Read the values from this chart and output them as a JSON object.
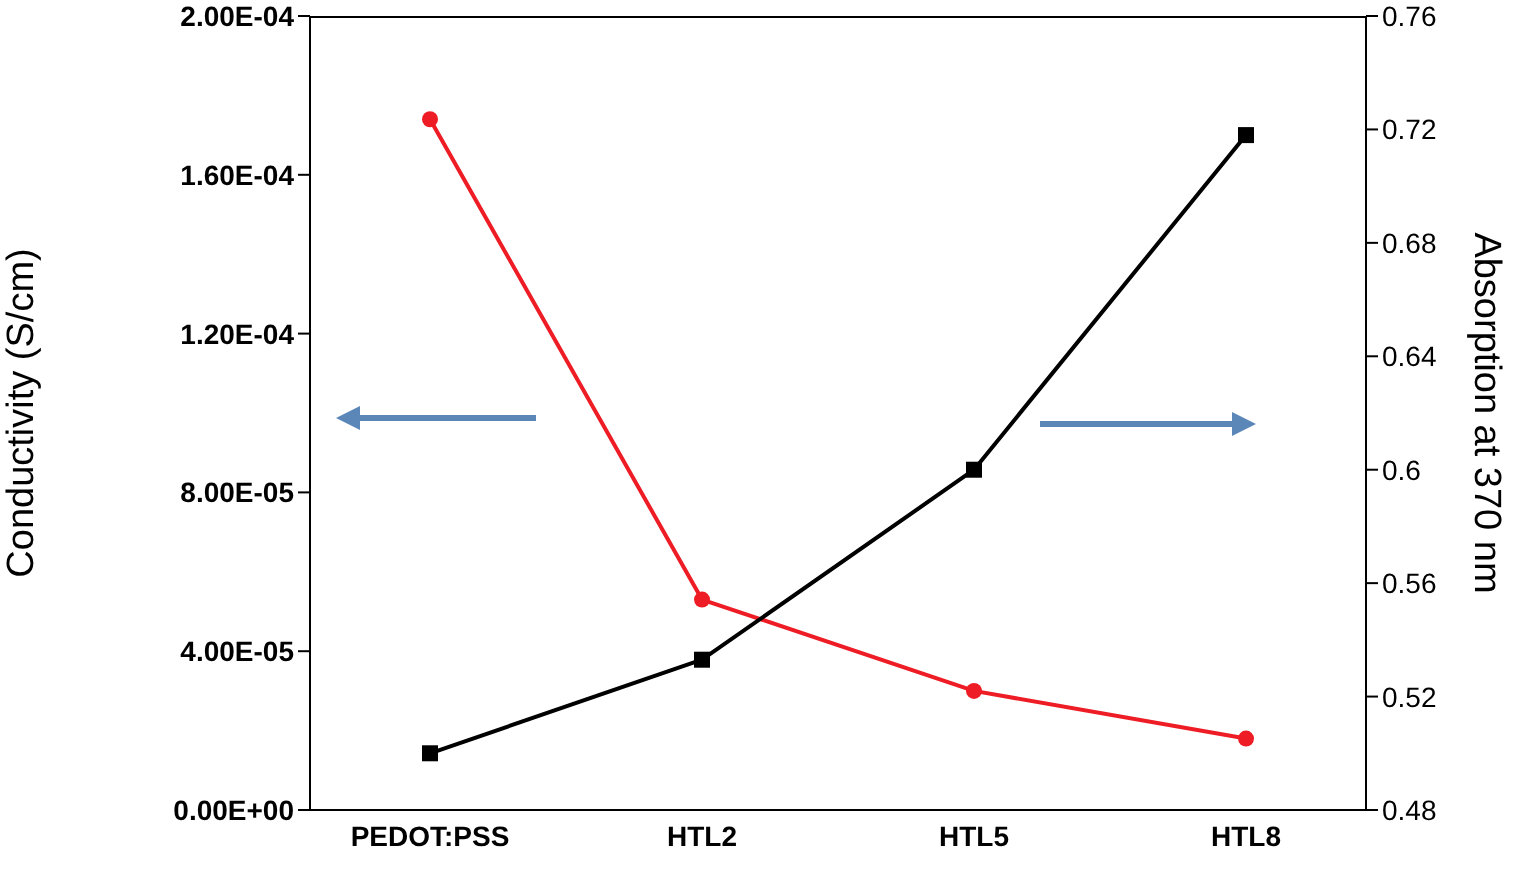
{
  "chart_data": {
    "type": "line",
    "categories": [
      "PEDOT:PSS",
      "HTL2",
      "HTL5",
      "HTL8"
    ],
    "ylabel": "Conductivity (S/cm)",
    "y2label": "Absorption at 370 nm",
    "series": [
      {
        "color": "#ee1c25",
        "values": [
          0.000174,
          5.3e-05,
          3e-05,
          1.8e-05
        ],
        "marker": "circle"
      },
      {
        "color": "#000000",
        "values": [
          0.5,
          0.533,
          0.6,
          0.718
        ],
        "marker": "square",
        "axis": "y2"
      }
    ],
    "ylim": [
      0,
      0.0002
    ],
    "yticks": [
      {
        "value": 0,
        "label": "0.00E+00"
      },
      {
        "value": 4e-05,
        "label": "4.00E-05"
      },
      {
        "value": 8e-05,
        "label": "8.00E-05"
      },
      {
        "value": 0.00012,
        "label": "1.20E-04"
      },
      {
        "value": 0.00016,
        "label": "1.60E-04"
      },
      {
        "value": 0.0002,
        "label": "2.00E-04"
      }
    ],
    "y2lim": [
      0.48,
      0.76
    ],
    "y2ticks": [
      0.48,
      0.52,
      0.56,
      0.6,
      0.64,
      0.68,
      0.72,
      0.76
    ],
    "grid": false
  }
}
